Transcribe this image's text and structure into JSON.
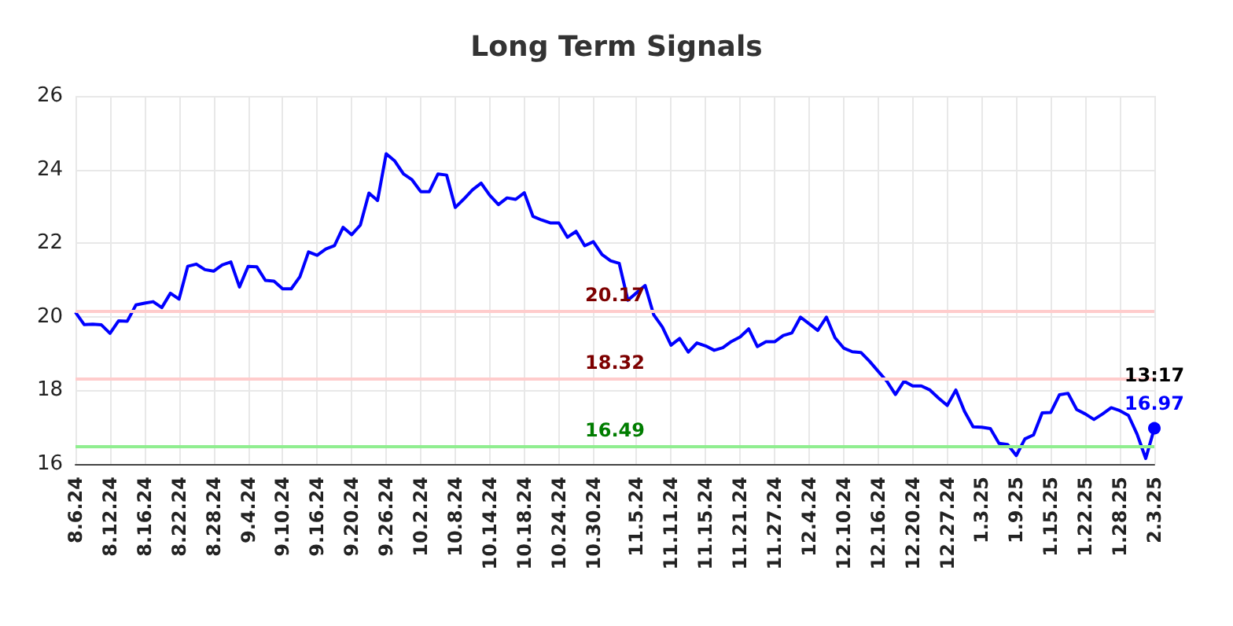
{
  "chart_data": {
    "type": "line",
    "title": "Long Term Signals",
    "categories": [
      "8.6.24",
      null,
      null,
      null,
      "8.12.24",
      null,
      null,
      null,
      "8.16.24",
      null,
      null,
      null,
      "8.22.24",
      null,
      null,
      null,
      "8.28.24",
      null,
      null,
      null,
      "9.4.24",
      null,
      null,
      null,
      "9.10.24",
      null,
      null,
      null,
      "9.16.24",
      null,
      null,
      null,
      "9.20.24",
      null,
      null,
      null,
      "9.26.24",
      null,
      null,
      null,
      "10.2.24",
      null,
      null,
      null,
      "10.8.24",
      null,
      null,
      null,
      "10.14.24",
      null,
      null,
      null,
      "10.18.24",
      null,
      null,
      null,
      "10.24.24",
      null,
      null,
      null,
      "10.30.24",
      null,
      null,
      null,
      null,
      "11.5.24",
      null,
      null,
      null,
      "11.11.24",
      null,
      null,
      null,
      "11.15.24",
      null,
      null,
      null,
      "11.21.24",
      null,
      null,
      null,
      "11.27.24",
      null,
      null,
      null,
      "12.4.24",
      null,
      null,
      null,
      "12.10.24",
      null,
      null,
      null,
      "12.16.24",
      null,
      null,
      null,
      "12.20.24",
      null,
      null,
      null,
      "12.27.24",
      null,
      null,
      null,
      "1.3.25",
      null,
      null,
      null,
      "1.9.25",
      null,
      null,
      null,
      "1.15.25",
      null,
      null,
      null,
      "1.22.25",
      null,
      null,
      null,
      "1.28.25",
      null,
      null,
      null,
      "2.3.25"
    ],
    "series": [
      {
        "color": "#0000ff",
        "values": [
          20.12,
          19.79,
          19.8,
          19.78,
          19.55,
          19.89,
          19.88,
          20.32,
          20.37,
          20.41,
          20.25,
          20.64,
          20.48,
          21.37,
          21.43,
          21.28,
          21.24,
          21.41,
          21.49,
          20.81,
          21.37,
          21.36,
          20.99,
          20.97,
          20.76,
          20.76,
          21.09,
          21.76,
          21.67,
          21.84,
          21.93,
          22.43,
          22.23,
          22.49,
          23.36,
          23.16,
          24.43,
          24.23,
          23.88,
          23.72,
          23.4,
          23.4,
          23.88,
          23.85,
          22.97,
          23.2,
          23.45,
          23.63,
          23.3,
          23.05,
          23.23,
          23.19,
          23.37,
          22.73,
          22.63,
          22.55,
          22.55,
          22.16,
          22.32,
          21.93,
          22.04,
          21.69,
          21.52,
          21.45,
          20.45,
          20.65,
          20.85,
          20.05,
          19.72,
          19.23,
          19.41,
          19.04,
          19.29,
          19.21,
          19.09,
          19.16,
          19.33,
          19.45,
          19.67,
          19.19,
          19.32,
          19.32,
          19.49,
          19.56,
          19.99,
          19.81,
          19.63,
          19.99,
          19.43,
          19.15,
          19.05,
          19.03,
          18.79,
          18.52,
          18.25,
          17.89,
          18.25,
          18.12,
          18.12,
          18.01,
          17.79,
          17.59,
          18.01,
          17.43,
          17.01,
          17.0,
          16.96,
          16.56,
          16.53,
          16.23,
          16.68,
          16.79,
          17.39,
          17.4,
          17.88,
          17.92,
          17.48,
          17.36,
          17.21,
          17.36,
          17.53,
          17.45,
          17.32,
          16.81,
          16.15,
          16.97
        ],
        "value_labels": [
          null,
          null,
          null,
          null,
          null,
          null,
          null,
          null,
          null,
          null,
          null,
          null,
          null,
          null,
          null,
          null,
          null,
          null,
          null,
          null,
          null,
          null,
          null,
          null,
          null,
          null,
          null,
          null,
          null,
          null,
          null,
          null,
          null,
          null,
          null,
          null,
          null,
          null,
          null,
          null,
          null,
          null,
          null,
          null,
          null,
          null,
          null,
          null,
          null,
          null,
          null,
          null,
          null,
          null,
          null,
          null,
          null,
          null,
          null,
          null,
          null,
          null,
          null,
          null,
          null,
          null,
          null,
          null,
          null,
          null,
          null,
          null,
          null,
          null,
          null,
          null,
          null,
          null,
          null,
          null,
          null,
          null,
          null,
          null,
          null,
          null,
          null,
          null,
          null,
          null,
          null,
          null,
          null,
          null,
          null,
          null,
          null,
          null,
          null,
          null,
          null,
          null,
          null,
          null,
          null,
          null,
          null,
          null,
          null,
          null,
          null,
          null,
          null,
          null,
          null,
          null,
          null,
          null,
          null,
          null,
          null,
          null,
          null,
          null,
          null,
          "16.97"
        ]
      }
    ],
    "ylim": [
      16,
      26
    ],
    "yticks": [
      16,
      18,
      20,
      22,
      24,
      26
    ],
    "grid": true,
    "ref_lines": [
      {
        "axis": "y",
        "value": 20.17,
        "label": "20.17",
        "color": "#ffcccc"
      },
      {
        "axis": "y",
        "value": 18.32,
        "label": "18.32",
        "color": "#ffcccc"
      },
      {
        "axis": "y",
        "value": 16.49,
        "label": "16.49",
        "color": "#90ee90"
      }
    ],
    "annotations": [
      "13:17"
    ]
  }
}
